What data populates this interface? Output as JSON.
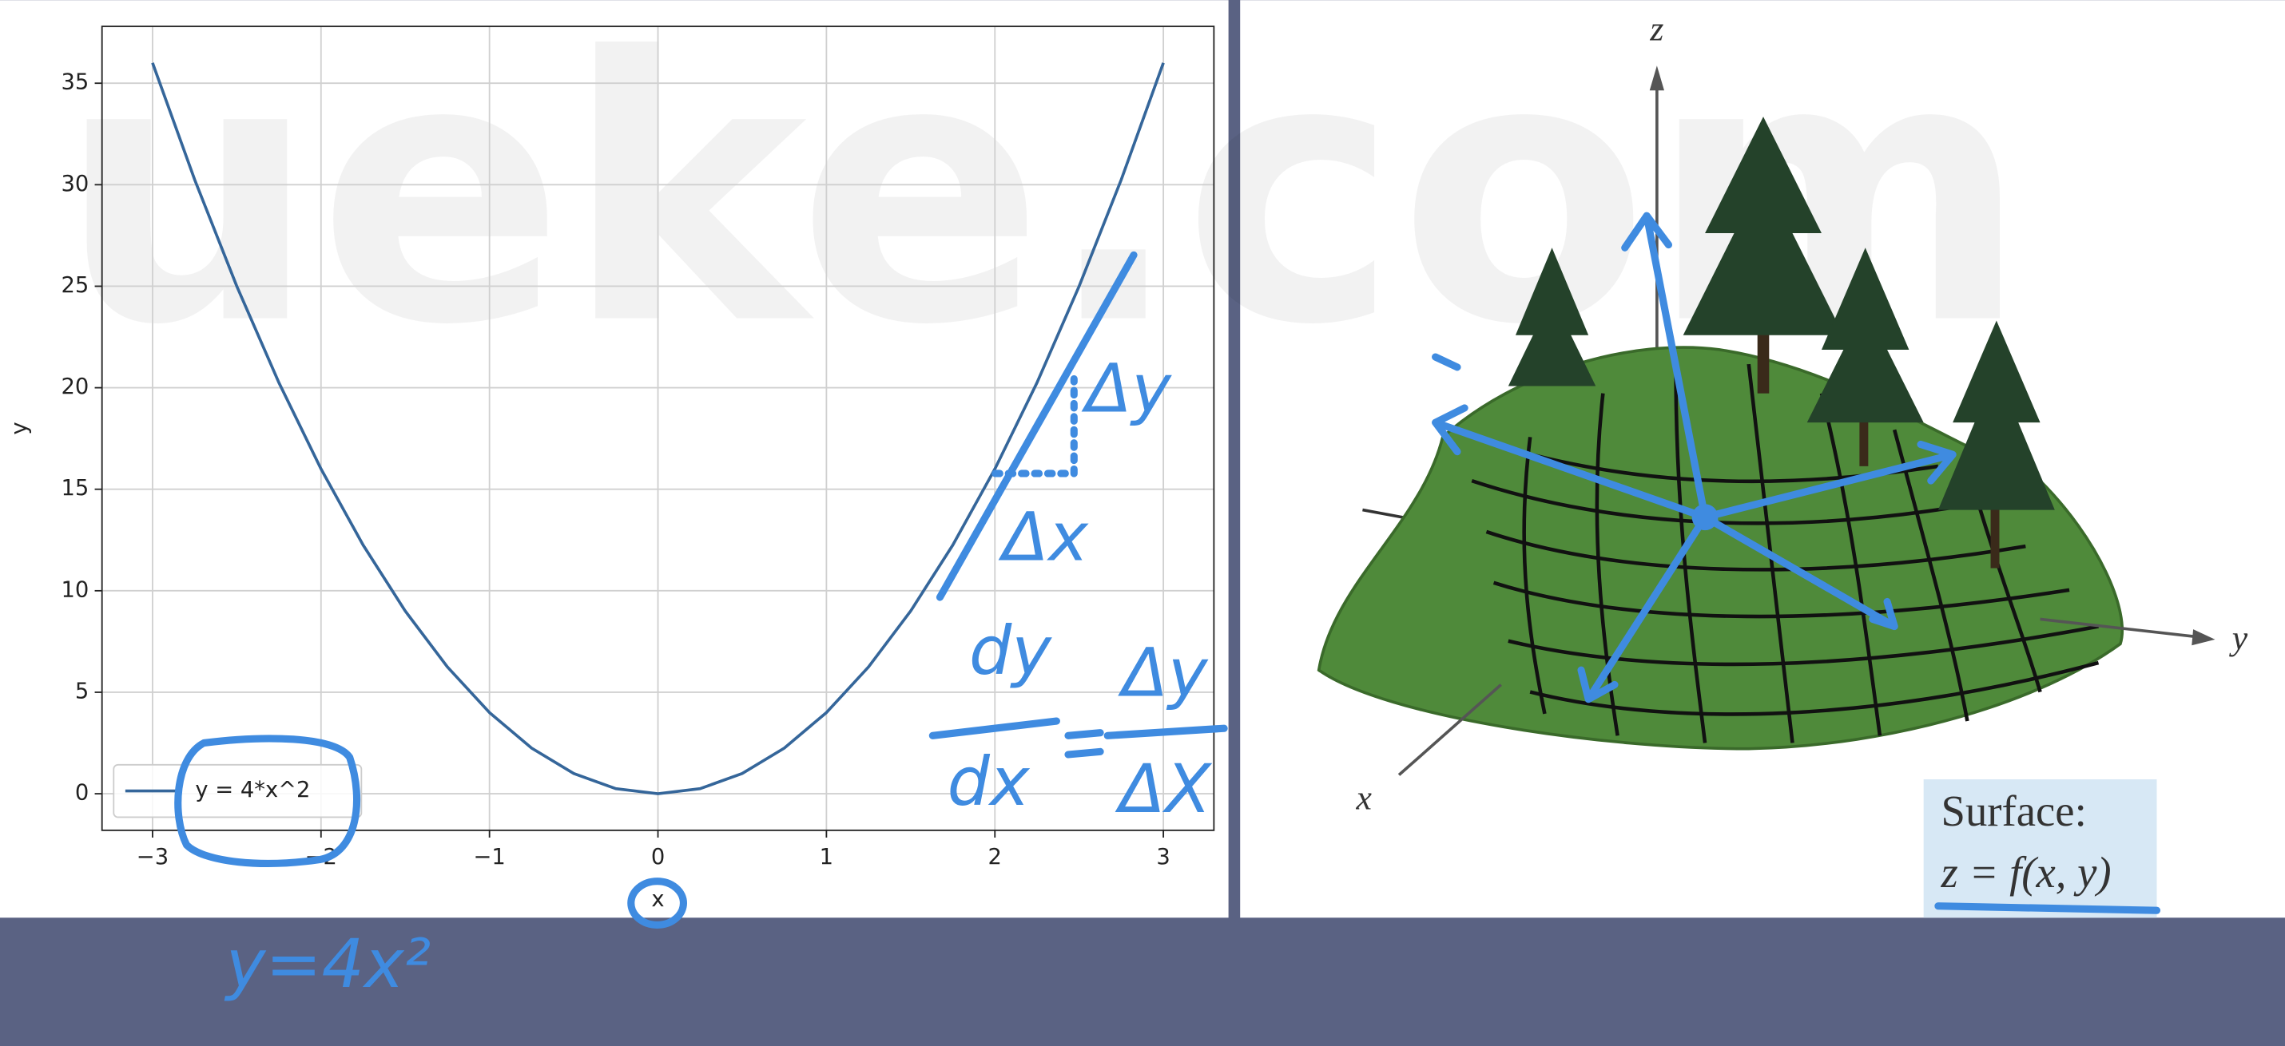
{
  "chart_data": {
    "type": "line",
    "xlabel": "x",
    "ylabel": "y",
    "x": [
      -3,
      -2.75,
      -2.5,
      -2.25,
      -2,
      -1.75,
      -1.5,
      -1.25,
      -1,
      -0.75,
      -0.5,
      -0.25,
      0,
      0.25,
      0.5,
      0.75,
      1,
      1.25,
      1.5,
      1.75,
      2,
      2.25,
      2.5,
      2.75,
      3
    ],
    "series": [
      {
        "name": "y = 4*x^2",
        "color": "#35669a",
        "values": [
          36,
          30.25,
          25,
          20.25,
          16,
          12.25,
          9,
          6.25,
          4,
          2.25,
          1,
          0.25,
          0,
          0.25,
          1,
          2.25,
          4,
          6.25,
          9,
          12.25,
          16,
          20.25,
          25,
          30.25,
          36
        ]
      }
    ],
    "xlim": [
      -3.3,
      3.3
    ],
    "ylim": [
      -1.8,
      37.8
    ],
    "xticks": [
      {
        "value": -3,
        "label": "−3"
      },
      {
        "value": -2,
        "label": "−2"
      },
      {
        "value": -1,
        "label": "−1"
      },
      0,
      1,
      2,
      3
    ],
    "yticks": [
      0,
      5,
      10,
      15,
      20,
      25,
      30,
      35
    ],
    "grid": true,
    "legend": "lower left",
    "annotations": [
      "Δy",
      "Δx",
      "dy",
      "dx",
      "Δy",
      "ΔX",
      "y=4x²"
    ]
  },
  "figure": {
    "axis_labels": [
      "z",
      "y",
      "x"
    ],
    "caption": [
      "Surface:",
      "z = f(x, y)"
    ]
  },
  "watermark": "ueke.com"
}
